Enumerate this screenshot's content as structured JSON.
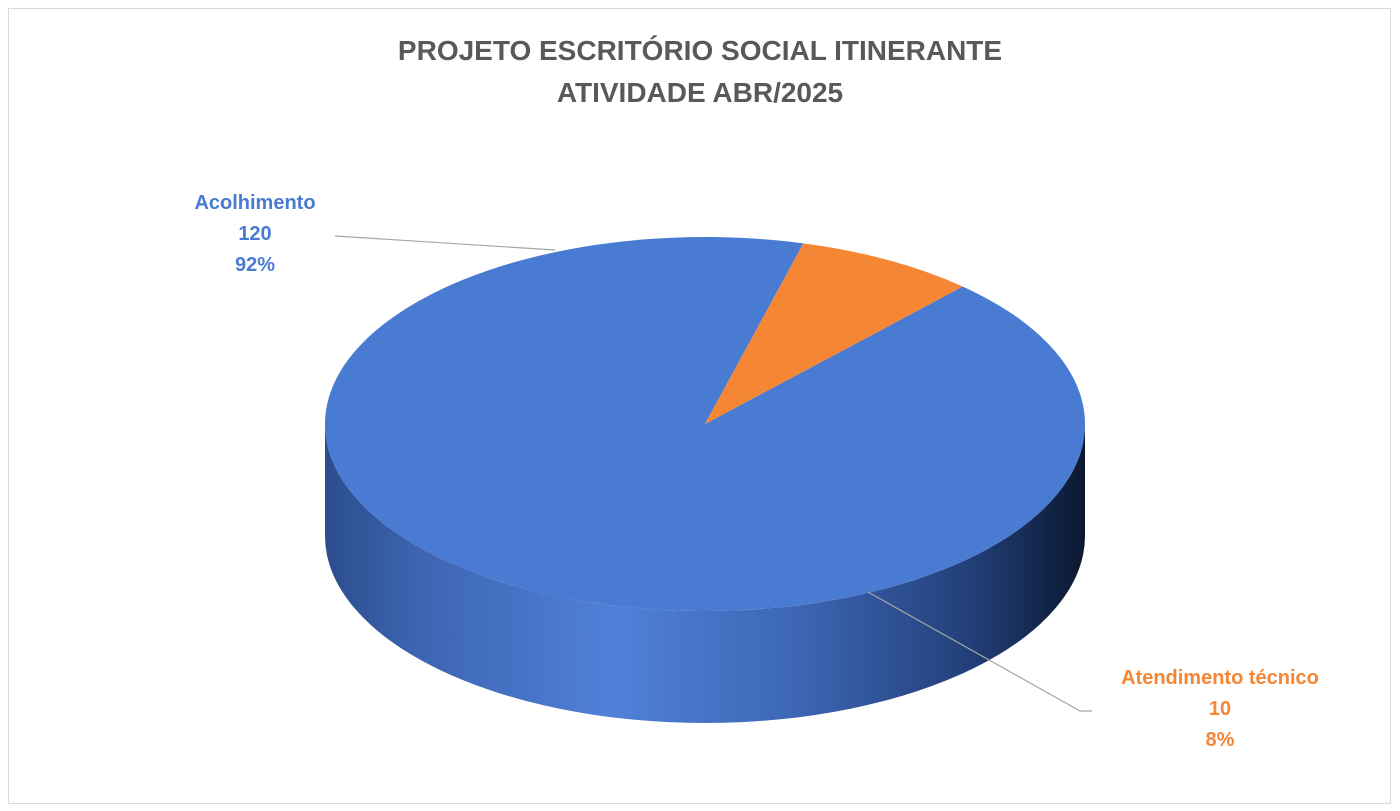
{
  "chart_data": {
    "type": "pie",
    "style": "3d",
    "title": [
      "PROJETO ESCRITÓRIO SOCIAL ITINERANTE",
      "ATIVIDADE ABR/2025"
    ],
    "slices": [
      {
        "label": "Acolhimento",
        "value": 120,
        "percent": "92%",
        "color": "#4a7bd2"
      },
      {
        "label": "Atendimento técnico",
        "value": 10,
        "percent": "8%",
        "color": "#f58634"
      }
    ],
    "legend": "none",
    "data_labels": "outside-with-leader-lines"
  }
}
